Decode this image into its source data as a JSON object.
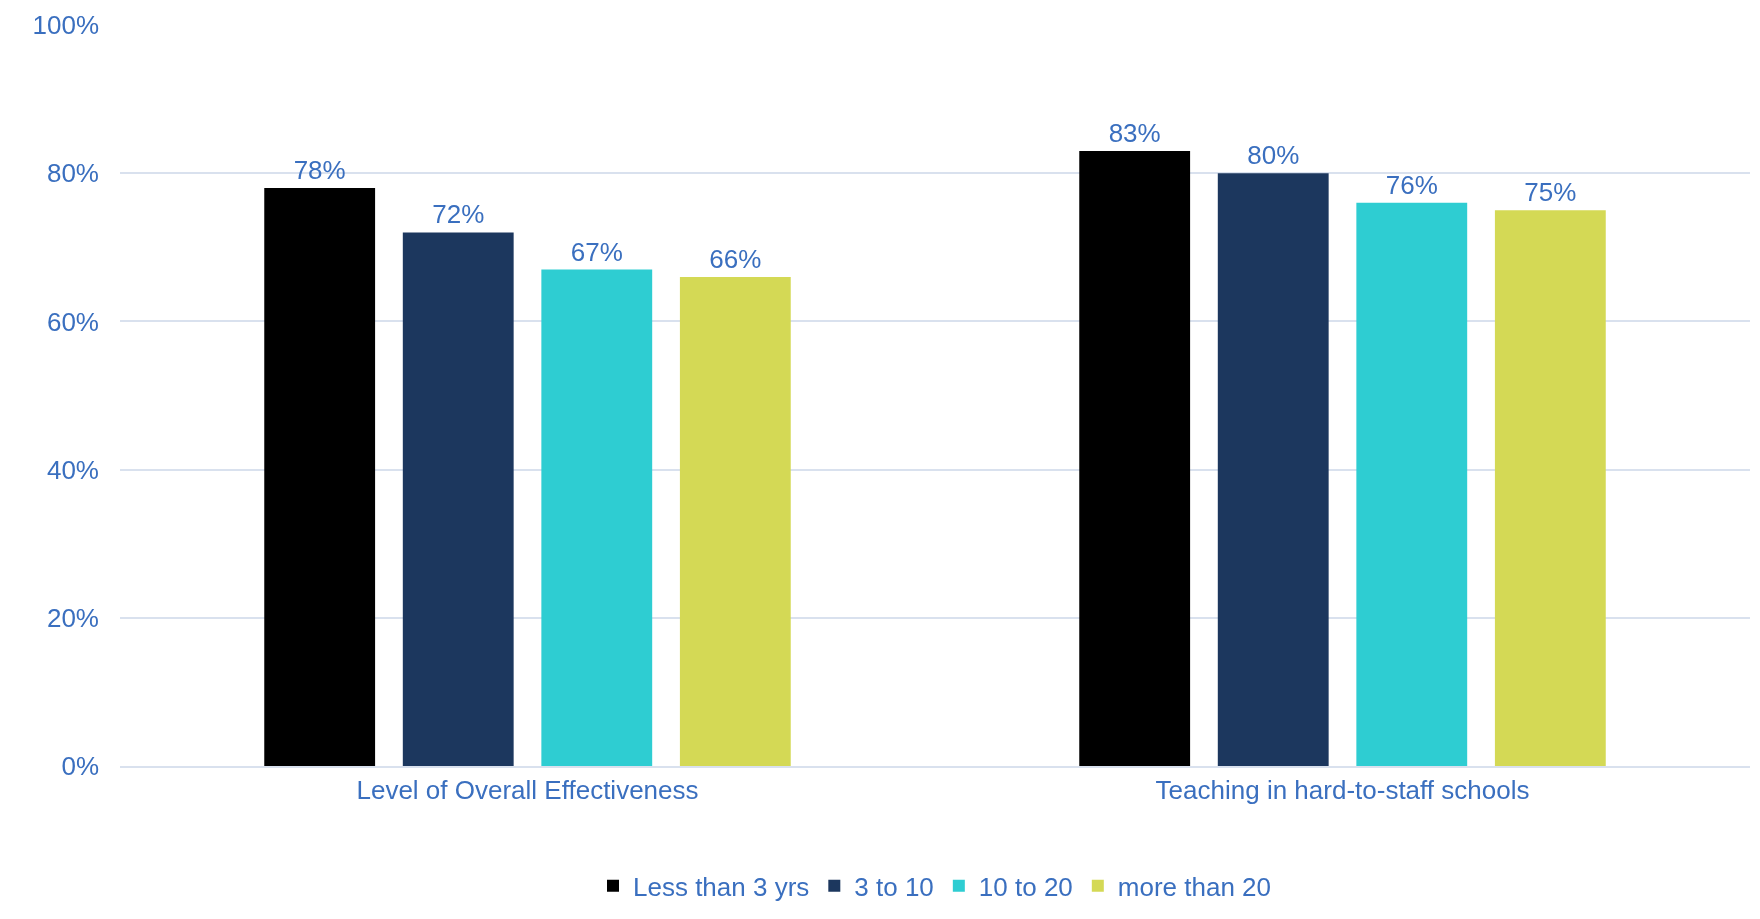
{
  "chart_data": {
    "type": "bar",
    "categories": [
      "Level of Overall Effectiveness",
      "Teaching in hard-to-staff schools"
    ],
    "series": [
      {
        "name": "Less than 3 yrs",
        "color": "#000000",
        "values": [
          78,
          83
        ],
        "value_labels": [
          "78%",
          "83%"
        ]
      },
      {
        "name": "3 to 10",
        "color": "#1c375e",
        "values": [
          72,
          80
        ],
        "value_labels": [
          "72%",
          "80%"
        ]
      },
      {
        "name": "10 to 20",
        "color": "#2ecdd2",
        "values": [
          67,
          76
        ],
        "value_labels": [
          "67%",
          "76%"
        ]
      },
      {
        "name": "more than 20",
        "color": "#d4d955",
        "values": [
          66,
          75
        ],
        "value_labels": [
          "66%",
          "75%"
        ]
      }
    ],
    "ylim": [
      0,
      100
    ],
    "yticks": [
      {
        "value": 0,
        "label": "0%"
      },
      {
        "value": 20,
        "label": "20%"
      },
      {
        "value": 40,
        "label": "40%"
      },
      {
        "value": 60,
        "label": "60%"
      },
      {
        "value": 80,
        "label": "80%"
      },
      {
        "value": 100,
        "label": "100%"
      }
    ],
    "grid": "y",
    "legend": "bottom"
  }
}
